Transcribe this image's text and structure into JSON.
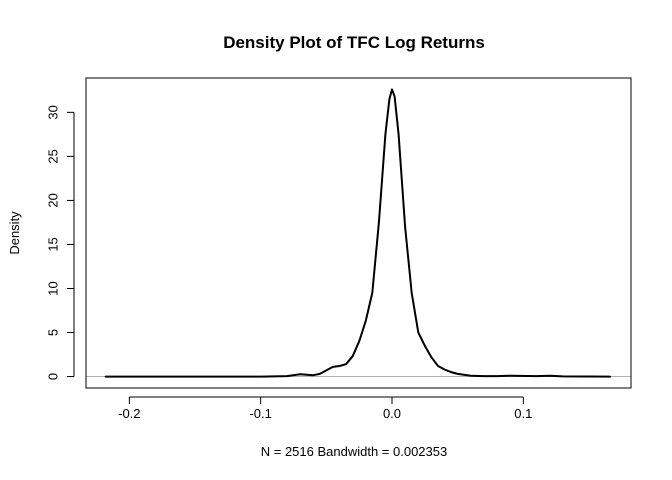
{
  "chart_data": {
    "type": "line",
    "title": "Density Plot of TFC Log Returns",
    "xlabel": "N = 2516   Bandwidth = 0.002353",
    "ylabel": "Density",
    "xlim": [
      -0.233,
      0.182
    ],
    "ylim": [
      -1.3,
      33.9
    ],
    "x_ticks": [
      -0.2,
      -0.1,
      0.0,
      0.1
    ],
    "x_tick_labels": [
      "-0.2",
      "-0.1",
      "0.0",
      "0.1"
    ],
    "y_ticks": [
      0,
      5,
      10,
      15,
      20,
      25,
      30
    ],
    "y_tick_labels": [
      "0",
      "5",
      "10",
      "15",
      "20",
      "25",
      "30"
    ],
    "baseline": 0,
    "baseline_color": "#b0b0b0",
    "line_color": "#000000",
    "grid": false,
    "legend": "none",
    "series": [
      {
        "x": [
          -0.218,
          -0.1,
          -0.08,
          -0.07,
          -0.06,
          -0.055,
          -0.05,
          -0.045,
          -0.04,
          -0.035,
          -0.03,
          -0.025,
          -0.02,
          -0.015,
          -0.01,
          -0.005,
          -0.002,
          0.0,
          0.002,
          0.005,
          0.01,
          0.015,
          0.02,
          0.025,
          0.03,
          0.035,
          0.04,
          0.045,
          0.05,
          0.06,
          0.07,
          0.08,
          0.09,
          0.11,
          0.12,
          0.13,
          0.166
        ],
        "y": [
          0.0,
          0.0,
          0.05,
          0.25,
          0.15,
          0.3,
          0.7,
          1.1,
          1.2,
          1.4,
          2.3,
          4.0,
          6.3,
          9.5,
          17.5,
          27.5,
          31.5,
          32.6,
          31.8,
          27.5,
          17.0,
          9.5,
          5.0,
          3.5,
          2.2,
          1.2,
          0.8,
          0.5,
          0.3,
          0.1,
          0.05,
          0.05,
          0.1,
          0.05,
          0.08,
          0.02,
          0.0
        ]
      }
    ]
  }
}
